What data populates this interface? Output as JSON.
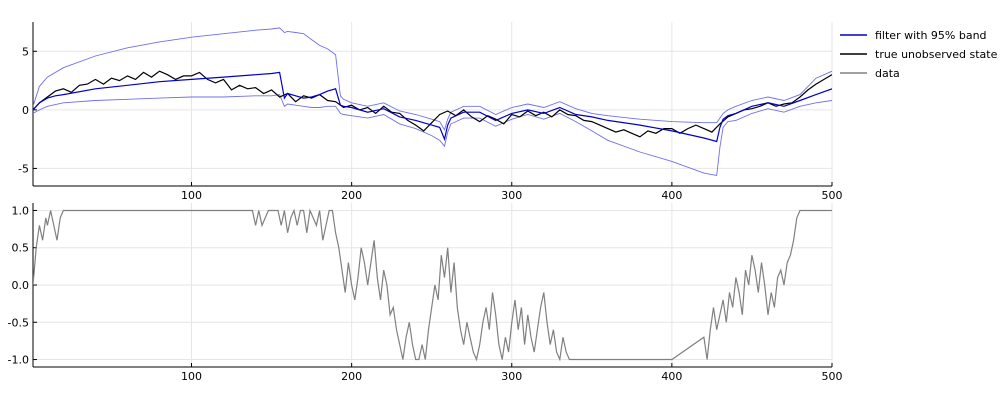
{
  "chart_data": [
    {
      "type": "line",
      "xlim": [
        1,
        500
      ],
      "ylim": [
        -6.5,
        7.5
      ],
      "xticks": [
        100,
        200,
        300,
        400,
        500
      ],
      "yticks": [
        -5,
        0,
        5
      ],
      "xtick_labels": [
        "100",
        "200",
        "300",
        "400",
        "500"
      ],
      "ytick_labels": [
        "-5",
        "0",
        "5"
      ],
      "grid": true,
      "legend_position": "top-right",
      "legend": [
        {
          "label": "filter with 95% band",
          "color": "#0000cc"
        },
        {
          "label": "true unobserved state",
          "color": "#000000"
        },
        {
          "label": "data",
          "color": "#808080"
        }
      ],
      "series": [
        {
          "name": "filter with 95% band",
          "role": "mean",
          "color": "#0000cc",
          "x": [
            1,
            5,
            10,
            15,
            20,
            40,
            60,
            80,
            100,
            120,
            140,
            150,
            155,
            158,
            160,
            165,
            170,
            175,
            180,
            185,
            190,
            193,
            195,
            200,
            210,
            220,
            230,
            240,
            250,
            255,
            258,
            260,
            262,
            270,
            280,
            290,
            300,
            310,
            320,
            330,
            340,
            350,
            360,
            380,
            400,
            420,
            428,
            430,
            432,
            435,
            440,
            450,
            460,
            470,
            480,
            490,
            500
          ],
          "y": [
            0,
            0.6,
            1.0,
            1.2,
            1.3,
            1.8,
            2.1,
            2.4,
            2.6,
            2.8,
            3.0,
            3.1,
            3.2,
            1.0,
            1.4,
            1.2,
            1.0,
            1.1,
            1.3,
            1.6,
            1.8,
            0.4,
            0.3,
            0.2,
            -0.2,
            0.1,
            -0.6,
            -0.9,
            -1.3,
            -1.5,
            -2.5,
            -1.3,
            -0.7,
            -0.2,
            -0.2,
            -0.9,
            -0.3,
            0.0,
            -0.3,
            0.2,
            -0.4,
            -0.6,
            -0.9,
            -1.3,
            -1.8,
            -2.4,
            -2.7,
            -1.5,
            -0.8,
            -0.5,
            -0.3,
            0.3,
            0.6,
            0.3,
            0.8,
            1.3,
            1.8
          ]
        },
        {
          "name": "filter with 95% band",
          "role": "upper",
          "color": "#6f6ff0",
          "x": [
            1,
            5,
            10,
            20,
            40,
            60,
            80,
            100,
            120,
            140,
            150,
            155,
            158,
            160,
            165,
            170,
            175,
            180,
            185,
            190,
            193,
            195,
            200,
            210,
            220,
            230,
            240,
            250,
            255,
            258,
            260,
            262,
            270,
            280,
            290,
            300,
            310,
            320,
            330,
            340,
            350,
            360,
            380,
            400,
            420,
            428,
            430,
            432,
            435,
            440,
            450,
            460,
            470,
            480,
            490,
            500
          ],
          "y": [
            0.3,
            2.0,
            2.8,
            3.6,
            4.6,
            5.3,
            5.8,
            6.2,
            6.5,
            6.8,
            6.9,
            7.0,
            6.6,
            6.7,
            6.6,
            6.5,
            6.0,
            5.5,
            5.2,
            4.7,
            1.2,
            0.9,
            0.6,
            0.3,
            0.6,
            -0.1,
            -0.4,
            -0.8,
            -1.0,
            -1.7,
            -0.8,
            -0.2,
            0.3,
            0.3,
            -0.4,
            0.2,
            0.5,
            0.2,
            0.7,
            0.1,
            -0.3,
            -0.5,
            -0.8,
            -1.0,
            -1.1,
            -1.1,
            -0.7,
            -0.3,
            0.0,
            0.3,
            0.8,
            1.1,
            0.8,
            1.3,
            2.7,
            3.3
          ]
        },
        {
          "name": "filter with 95% band",
          "role": "lower",
          "color": "#6f6ff0",
          "x": [
            1,
            5,
            10,
            20,
            40,
            60,
            80,
            100,
            120,
            140,
            150,
            155,
            158,
            160,
            165,
            170,
            175,
            180,
            185,
            190,
            193,
            195,
            200,
            210,
            220,
            230,
            240,
            250,
            255,
            258,
            260,
            262,
            270,
            280,
            290,
            300,
            310,
            320,
            330,
            340,
            350,
            360,
            380,
            400,
            420,
            428,
            430,
            432,
            435,
            440,
            450,
            460,
            470,
            480,
            490,
            500
          ],
          "y": [
            -0.3,
            0.0,
            0.3,
            0.6,
            0.8,
            0.9,
            1.0,
            1.1,
            1.1,
            1.2,
            1.2,
            1.3,
            0.3,
            0.5,
            0.4,
            0.3,
            0.2,
            0.2,
            0.3,
            0.3,
            -0.3,
            -0.4,
            -0.5,
            -0.7,
            -0.4,
            -1.2,
            -1.6,
            -2.2,
            -2.6,
            -3.1,
            -1.9,
            -1.2,
            -0.7,
            -0.7,
            -1.4,
            -0.8,
            -0.4,
            -0.8,
            -0.3,
            -1.0,
            -1.8,
            -2.6,
            -3.6,
            -4.4,
            -5.4,
            -5.6,
            -3.2,
            -1.5,
            -1.0,
            -0.9,
            -0.3,
            0.1,
            -0.2,
            0.3,
            0.6,
            0.8
          ]
        },
        {
          "name": "true unobserved state",
          "role": "state",
          "color": "#000000",
          "x": [
            1,
            5,
            10,
            15,
            20,
            25,
            30,
            35,
            40,
            45,
            50,
            55,
            60,
            65,
            70,
            75,
            80,
            85,
            90,
            95,
            100,
            105,
            110,
            115,
            120,
            125,
            130,
            135,
            140,
            145,
            150,
            155,
            160,
            165,
            170,
            175,
            180,
            185,
            190,
            195,
            200,
            205,
            210,
            215,
            220,
            225,
            230,
            235,
            240,
            245,
            250,
            255,
            260,
            265,
            270,
            275,
            280,
            285,
            290,
            295,
            300,
            305,
            310,
            315,
            320,
            325,
            330,
            335,
            340,
            345,
            350,
            355,
            360,
            365,
            370,
            375,
            380,
            385,
            390,
            395,
            400,
            405,
            410,
            415,
            420,
            425,
            430,
            435,
            440,
            445,
            450,
            455,
            460,
            465,
            470,
            475,
            480,
            485,
            490,
            495,
            500
          ],
          "y": [
            0.0,
            0.6,
            1.1,
            1.6,
            1.8,
            1.5,
            2.1,
            2.2,
            2.6,
            2.2,
            2.7,
            2.5,
            2.9,
            2.6,
            3.2,
            2.8,
            3.3,
            3.0,
            2.6,
            2.9,
            2.9,
            3.2,
            2.6,
            2.3,
            2.6,
            1.7,
            2.1,
            1.8,
            1.9,
            1.4,
            1.7,
            1.1,
            1.4,
            0.7,
            1.2,
            1.0,
            1.3,
            0.8,
            0.7,
            0.2,
            0.4,
            0.0,
            0.2,
            -0.3,
            0.3,
            -0.2,
            -0.3,
            -0.9,
            -1.3,
            -1.8,
            -1.1,
            -0.4,
            -0.1,
            -0.5,
            0.0,
            -0.6,
            -1.0,
            -0.5,
            -0.8,
            -1.2,
            -0.4,
            -0.6,
            -0.1,
            -0.5,
            -0.2,
            -0.6,
            0.0,
            -0.4,
            -0.5,
            -0.9,
            -1.0,
            -1.3,
            -1.6,
            -1.9,
            -1.7,
            -2.0,
            -2.3,
            -1.8,
            -2.0,
            -1.6,
            -1.6,
            -2.0,
            -1.6,
            -1.3,
            -1.6,
            -1.9,
            -1.2,
            -0.6,
            -0.3,
            0.0,
            0.1,
            0.3,
            0.6,
            0.3,
            0.5,
            0.6,
            1.1,
            1.7,
            2.2,
            2.6,
            3.0
          ]
        }
      ]
    },
    {
      "type": "line",
      "xlim": [
        1,
        500
      ],
      "ylim": [
        -1.1,
        1.1
      ],
      "xticks": [
        100,
        200,
        300,
        400,
        500
      ],
      "yticks": [
        -1.0,
        -0.5,
        0.0,
        0.5,
        1.0
      ],
      "xtick_labels": [
        "100",
        "200",
        "300",
        "400",
        "500"
      ],
      "ytick_labels": [
        "-1.0",
        "-0.5",
        "0.0",
        "0.5",
        "1.0"
      ],
      "grid": true,
      "series": [
        {
          "name": "data",
          "color": "#808080",
          "x": [
            1,
            3,
            5,
            7,
            9,
            10,
            12,
            14,
            16,
            18,
            20,
            30,
            50,
            80,
            100,
            120,
            138,
            140,
            142,
            144,
            146,
            148,
            150,
            152,
            154,
            156,
            158,
            160,
            162,
            164,
            166,
            168,
            170,
            172,
            174,
            176,
            178,
            180,
            182,
            184,
            186,
            188,
            190,
            192,
            194,
            196,
            198,
            200,
            202,
            204,
            206,
            208,
            210,
            212,
            214,
            216,
            218,
            220,
            222,
            224,
            226,
            228,
            230,
            232,
            234,
            236,
            238,
            240,
            242,
            244,
            246,
            248,
            250,
            252,
            254,
            256,
            258,
            260,
            262,
            264,
            266,
            268,
            270,
            272,
            274,
            276,
            278,
            280,
            282,
            284,
            286,
            288,
            290,
            292,
            294,
            296,
            298,
            300,
            302,
            304,
            306,
            308,
            310,
            312,
            314,
            316,
            318,
            320,
            322,
            324,
            326,
            328,
            330,
            332,
            334,
            336,
            338,
            340,
            345,
            350,
            360,
            380,
            400,
            420,
            422,
            424,
            426,
            428,
            430,
            432,
            434,
            436,
            438,
            440,
            442,
            444,
            446,
            448,
            450,
            452,
            454,
            456,
            458,
            460,
            462,
            464,
            466,
            468,
            470,
            472,
            474,
            476,
            478,
            480,
            485,
            490,
            500
          ],
          "y": [
            0.0,
            0.5,
            0.8,
            0.6,
            0.9,
            0.8,
            1.0,
            0.8,
            0.6,
            0.9,
            1.0,
            1.0,
            1.0,
            1.0,
            1.0,
            1.0,
            1.0,
            0.8,
            1.0,
            0.8,
            0.9,
            1.0,
            1.0,
            1.0,
            1.0,
            0.8,
            1.0,
            0.7,
            0.9,
            1.0,
            0.8,
            1.0,
            1.0,
            0.7,
            1.0,
            0.9,
            0.8,
            1.0,
            0.6,
            0.8,
            1.0,
            1.0,
            0.7,
            0.5,
            0.2,
            -0.1,
            0.3,
            0.0,
            -0.2,
            0.1,
            0.5,
            0.3,
            0.0,
            0.3,
            0.6,
            0.1,
            -0.2,
            0.2,
            0.0,
            -0.4,
            -0.3,
            -0.6,
            -0.8,
            -1.0,
            -0.7,
            -0.5,
            -0.8,
            -1.0,
            -1.0,
            -0.8,
            -1.0,
            -0.6,
            -0.3,
            0.0,
            -0.2,
            0.4,
            0.1,
            0.5,
            -0.1,
            0.3,
            -0.3,
            -0.6,
            -0.8,
            -0.5,
            -0.7,
            -0.9,
            -1.0,
            -0.8,
            -0.5,
            -0.3,
            -0.6,
            -0.1,
            -0.4,
            -0.8,
            -1.0,
            -0.7,
            -0.9,
            -0.5,
            -0.2,
            -0.6,
            -0.3,
            -0.8,
            -0.4,
            -0.7,
            -0.9,
            -0.6,
            -0.3,
            -0.1,
            -0.5,
            -0.8,
            -0.6,
            -0.9,
            -1.0,
            -0.7,
            -0.9,
            -1.0,
            -1.0,
            -1.0,
            -1.0,
            -1.0,
            -1.0,
            -1.0,
            -1.0,
            -0.7,
            -1.0,
            -0.6,
            -0.3,
            -0.6,
            -0.4,
            -0.2,
            -0.5,
            -0.1,
            -0.3,
            0.1,
            -0.1,
            -0.4,
            0.2,
            0.0,
            0.4,
            0.2,
            -0.1,
            0.3,
            0.0,
            -0.4,
            -0.1,
            -0.3,
            0.1,
            0.2,
            0.0,
            0.3,
            0.4,
            0.6,
            0.9,
            1.0,
            1.0,
            1.0,
            1.0
          ]
        }
      ]
    }
  ]
}
